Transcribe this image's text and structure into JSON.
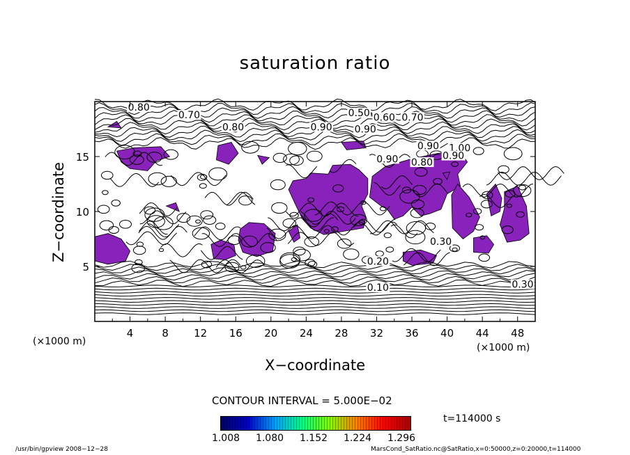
{
  "chart_data": {
    "type": "contour",
    "title": "saturation ratio",
    "xlabel": "X−coordinate",
    "ylabel": "Z−coordinate",
    "x_unit": "(×1000 m)",
    "xlim": [
      0,
      50
    ],
    "ylim": [
      0,
      20
    ],
    "x_ticks": [
      "4",
      "8",
      "12",
      "16",
      "20",
      "24",
      "28",
      "32",
      "36",
      "40",
      "44",
      "48"
    ],
    "y_ticks": [
      "5",
      "10",
      "15"
    ],
    "contour_labels": [
      "0.80",
      "0.70",
      "0.80",
      "0.50",
      "0.60",
      "0.70",
      "0.90",
      "0.90",
      "0.90",
      "1.00",
      "0.80",
      "0.90",
      "0.90",
      "0.30",
      "0.20",
      "0.10",
      "0.30"
    ],
    "contour_interval_text": "CONTOUR INTERVAL = 5.000E−02",
    "colorbar": {
      "tick_labels": [
        "1.008",
        "1.080",
        "1.152",
        "1.224",
        "1.296"
      ],
      "colors": [
        "#000066",
        "#0000cc",
        "#00a0ff",
        "#00ff80",
        "#80ff00",
        "#ff8000",
        "#ff0000",
        "#aa0000"
      ]
    },
    "fill_color": "#8822bb",
    "time_label": "t=114000 s"
  },
  "footer": {
    "left": "/usr/bin/gpview   2008−12−28",
    "right": "MarsCond_SatRatio.nc@SatRatio,x=0:50000,z=0:20000,t=114000"
  }
}
